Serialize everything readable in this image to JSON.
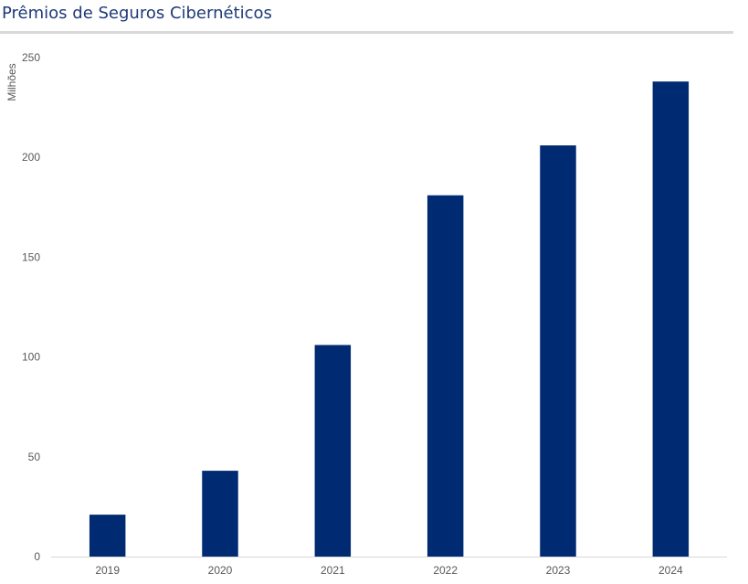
{
  "header": {
    "title": "Prêmios de Seguros Cibernéticos"
  },
  "colors": {
    "bar": "#002a72",
    "title": "#1f3a7a",
    "axis_line": "#d9d9d9",
    "tick_text": "#595959"
  },
  "chart_data": {
    "type": "bar",
    "title": "Prêmios de Seguros Cibernéticos",
    "xlabel": "",
    "ylabel": "Milhões",
    "categories": [
      "2019",
      "2020",
      "2021",
      "2022",
      "2023",
      "2024"
    ],
    "values": [
      21,
      43,
      106,
      181,
      206,
      238
    ],
    "ylim": [
      0,
      250
    ],
    "yticks": [
      "0",
      "50",
      "100",
      "150",
      "200",
      "250"
    ],
    "grid": false,
    "legend": "none"
  }
}
